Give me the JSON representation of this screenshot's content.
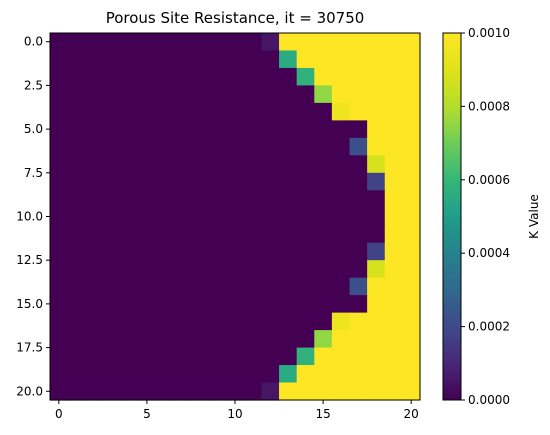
{
  "chart_data": {
    "type": "heatmap",
    "title": "Porous Site Resistance, it = 30750",
    "xlabel": "",
    "ylabel": "",
    "colorbar_label": "K Value",
    "colormap": "viridis",
    "vmin": 0.0,
    "vmax": 0.001,
    "n_rows": 21,
    "n_cols": 21,
    "x_ticks": [
      0,
      5,
      10,
      15,
      20
    ],
    "x_tick_labels": [
      "0",
      "5",
      "10",
      "15",
      "20"
    ],
    "y_ticks": [
      0.0,
      2.5,
      5.0,
      7.5,
      10.0,
      12.5,
      15.0,
      17.5,
      20.0
    ],
    "y_tick_labels": [
      "0.0",
      "2.5",
      "5.0",
      "7.5",
      "10.0",
      "12.5",
      "15.0",
      "17.5",
      "20.0"
    ],
    "colorbar_ticks": [
      0.0,
      0.0002,
      0.0004,
      0.0006,
      0.0008,
      0.001
    ],
    "colorbar_tick_labels": [
      "0.0000",
      "0.0002",
      "0.0004",
      "0.0006",
      "0.0008",
      "0.0010"
    ],
    "grid": false,
    "boundary_columns": [
      12,
      13,
      14,
      15,
      16,
      17,
      17,
      18,
      18,
      18,
      18,
      18,
      18,
      18,
      17,
      17,
      16,
      15,
      14,
      13,
      12
    ],
    "transition_values": [
      5e-05,
      0.00055,
      0.00058,
      0.00075,
      0.00095,
      0.0,
      0.00022,
      0.00088,
      0.00018,
      0.0,
      0.0,
      0.0,
      0.00018,
      0.00088,
      0.00022,
      0.0,
      0.00095,
      0.00075,
      0.00058,
      0.00055,
      5e-05
    ],
    "fill_value_right": 0.001,
    "fill_value_left": 0.0
  }
}
